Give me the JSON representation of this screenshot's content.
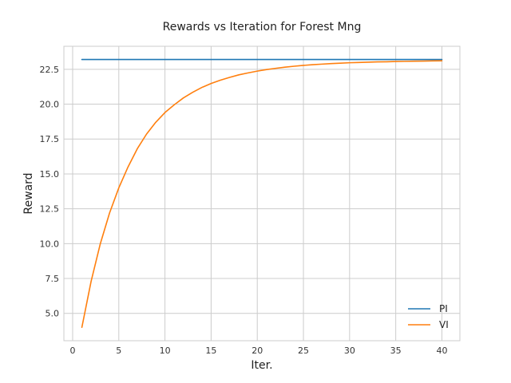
{
  "chart_data": {
    "type": "line",
    "title": "Rewards vs Iteration for Forest Mng",
    "xlabel": "Iter.",
    "ylabel": "Reward",
    "xlim": [
      -0.95,
      41.95
    ],
    "ylim": [
      3.04,
      24.15
    ],
    "xticks": [
      0,
      5,
      10,
      15,
      20,
      25,
      30,
      35,
      40
    ],
    "xtick_labels": [
      "0",
      "5",
      "10",
      "15",
      "20",
      "25",
      "30",
      "35",
      "40"
    ],
    "yticks": [
      5.0,
      7.5,
      10.0,
      12.5,
      15.0,
      17.5,
      20.0,
      22.5
    ],
    "ytick_labels": [
      "5.0",
      "7.5",
      "10.0",
      "12.5",
      "15.0",
      "17.5",
      "20.0",
      "22.5"
    ],
    "grid": true,
    "legend_position": "lower-right",
    "x": [
      1,
      2,
      3,
      4,
      5,
      6,
      7,
      8,
      9,
      10,
      11,
      12,
      13,
      14,
      15,
      16,
      17,
      18,
      19,
      20,
      21,
      22,
      23,
      24,
      25,
      26,
      27,
      28,
      29,
      30,
      31,
      32,
      33,
      34,
      35,
      36,
      37,
      38,
      39,
      40
    ],
    "series": [
      {
        "name": "PI",
        "color": "#1f77b4",
        "values": [
          23.2,
          23.2,
          23.2,
          23.2,
          23.2,
          23.2,
          23.2,
          23.2,
          23.2,
          23.2,
          23.2,
          23.2,
          23.2,
          23.2,
          23.2,
          23.2,
          23.2,
          23.2,
          23.2,
          23.2,
          23.2,
          23.2,
          23.2,
          23.2,
          23.2,
          23.2,
          23.2,
          23.2,
          23.2,
          23.2,
          23.2,
          23.2,
          23.2,
          23.2,
          23.2,
          23.2,
          23.2,
          23.2,
          23.2,
          23.2
        ]
      },
      {
        "name": "VI",
        "color": "#ff7f0e",
        "values": [
          4.0,
          7.3,
          10.0,
          12.2,
          14.0,
          15.5,
          16.8,
          17.85,
          18.7,
          19.4,
          19.95,
          20.45,
          20.85,
          21.2,
          21.48,
          21.72,
          21.92,
          22.1,
          22.24,
          22.37,
          22.48,
          22.57,
          22.65,
          22.72,
          22.78,
          22.83,
          22.87,
          22.91,
          22.94,
          22.97,
          22.99,
          23.01,
          23.03,
          23.04,
          23.06,
          23.07,
          23.08,
          23.09,
          23.1,
          23.11
        ]
      }
    ]
  }
}
